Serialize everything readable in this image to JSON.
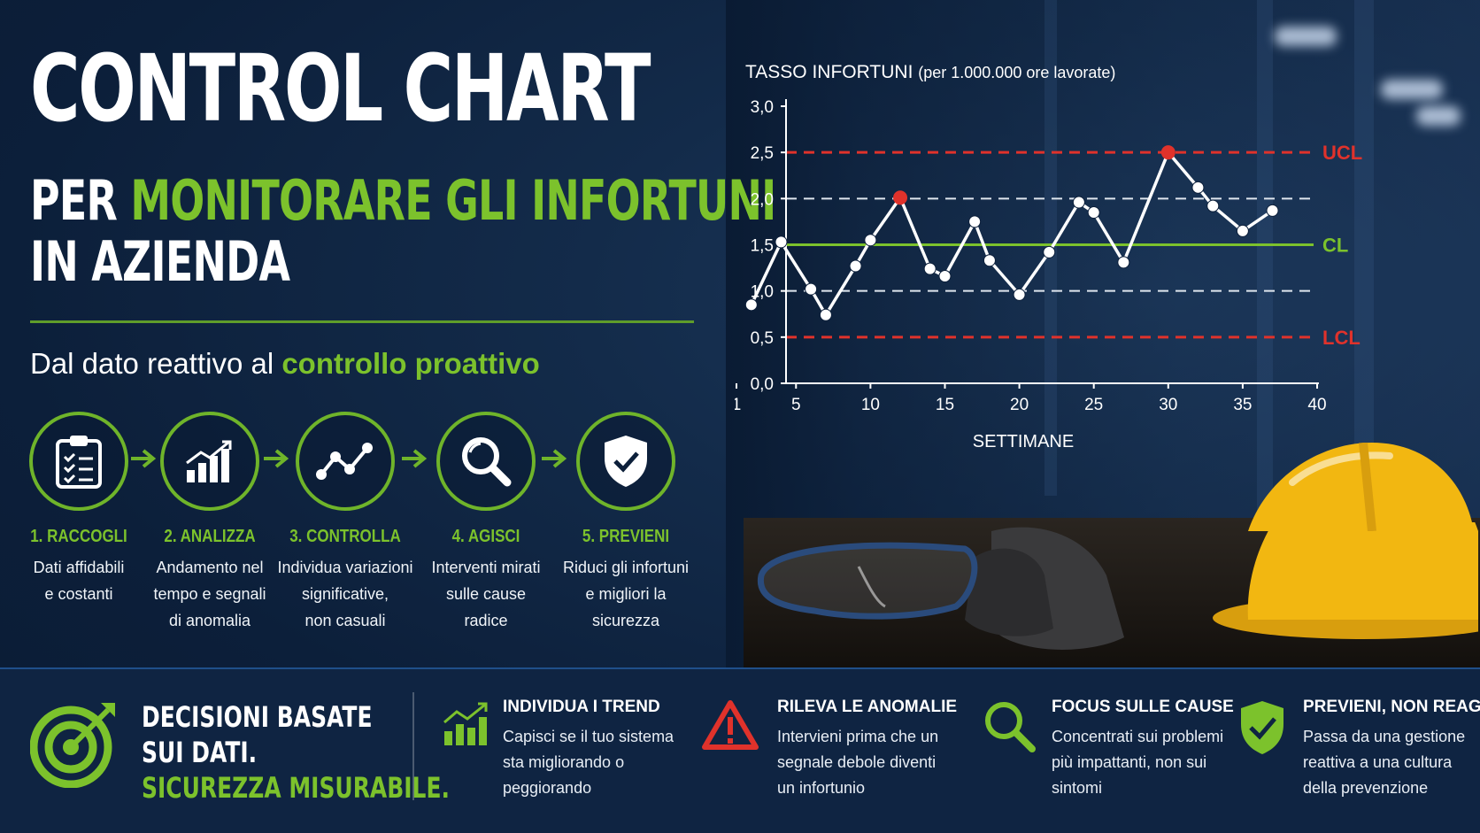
{
  "header": {
    "title": "CONTROL CHART",
    "line2_prefix": "PER",
    "line2_highlight": "MONITORARE GLI INFORTUNI",
    "line3": "IN AZIENDA",
    "subtitle_prefix": "Dal dato reattivo al",
    "subtitle_highlight": "controllo proattivo"
  },
  "steps": [
    {
      "title": "1. RACCOGLI",
      "lines": [
        "Dati affidabili",
        "e costanti"
      ],
      "icon": "clipboard-icon"
    },
    {
      "title": "2. ANALIZZA",
      "lines": [
        "Andamento nel",
        "tempo e segnali",
        "di anomalia"
      ],
      "icon": "bar-chart-icon"
    },
    {
      "title": "3. CONTROLLA",
      "lines": [
        "Individua variazioni",
        "significative,",
        "non casuali"
      ],
      "icon": "line-chart-icon"
    },
    {
      "title": "4. AGISCI",
      "lines": [
        "Interventi mirati",
        "sulle cause",
        "radice"
      ],
      "icon": "magnifier-icon"
    },
    {
      "title": "5. PREVIENI",
      "lines": [
        "Riduci gli infortuni",
        "e migliori la",
        "sicurezza"
      ],
      "icon": "shield-check-icon"
    }
  ],
  "chart_data": {
    "type": "line",
    "title": "TASSO INFORTUNI",
    "title_note": "(per 1.000.000 ore lavorate)",
    "xlabel": "SETTIMANE",
    "ylabel": "",
    "xlim": [
      1,
      40
    ],
    "ylim": [
      0,
      3
    ],
    "x_ticks": [
      "1",
      "5",
      "10",
      "15",
      "20",
      "25",
      "30",
      "35",
      "40"
    ],
    "x_tick_values": [
      1,
      5,
      10,
      15,
      20,
      25,
      30,
      35,
      40
    ],
    "y_ticks": [
      "0,0",
      "0,5",
      "1,0",
      "1,5",
      "2,0",
      "2,5",
      "3,0"
    ],
    "y_tick_values": [
      0,
      0.5,
      1.0,
      1.5,
      2.0,
      2.5,
      3.0
    ],
    "x": [
      2,
      4,
      6,
      7,
      9,
      10,
      12,
      14,
      15,
      17,
      18,
      20,
      22,
      24,
      25,
      27,
      30,
      32,
      33,
      35,
      37
    ],
    "values": [
      0.85,
      1.53,
      1.02,
      0.74,
      1.27,
      1.55,
      2.01,
      1.24,
      1.16,
      1.75,
      1.33,
      0.96,
      1.42,
      1.96,
      1.85,
      1.31,
      2.5,
      2.12,
      1.92,
      1.65,
      1.87
    ],
    "out_of_control_x": [
      12,
      30
    ],
    "limits": [
      {
        "label": "UCL",
        "value": 2.5,
        "color": "#e0322b",
        "style": "dashed"
      },
      {
        "label": "CL",
        "value": 1.5,
        "color": "#7cc22c",
        "style": "solid"
      },
      {
        "label": "LCL",
        "value": 0.5,
        "color": "#e0322b",
        "style": "dashed"
      }
    ],
    "guides": [
      2.0,
      1.0
    ],
    "line_color": "#ffffff",
    "alert_color": "#e0322b",
    "grid": false
  },
  "bottom": {
    "main_lines": [
      "DECISIONI BASATE",
      "SUI DATI."
    ],
    "main_highlight": "SICUREZZA MISURABILE.",
    "features": [
      {
        "title": "INDIVIDUA I TREND",
        "lines": [
          "Capisci se il tuo sistema",
          "sta migliorando o",
          "peggiorando"
        ],
        "icon": "trend-bars-icon"
      },
      {
        "title": "RILEVA LE ANOMALIE",
        "lines": [
          "Intervieni prima che un",
          "segnale debole diventi",
          "un infortunio"
        ],
        "icon": "warning-icon"
      },
      {
        "title": "FOCUS SULLE CAUSE",
        "lines": [
          "Concentrati sui problemi",
          "più impattanti, non sui",
          "sintomi"
        ],
        "icon": "search-icon"
      },
      {
        "title": "PREVIENI, NON REAGIRE",
        "lines": [
          "Passa da una gestione",
          "reattiva a una cultura",
          "della prevenzione"
        ],
        "icon": "shield-check-icon"
      }
    ]
  },
  "colors": {
    "accent": "#7cc22c",
    "alert": "#e0322b",
    "background": "#0b1d36"
  }
}
